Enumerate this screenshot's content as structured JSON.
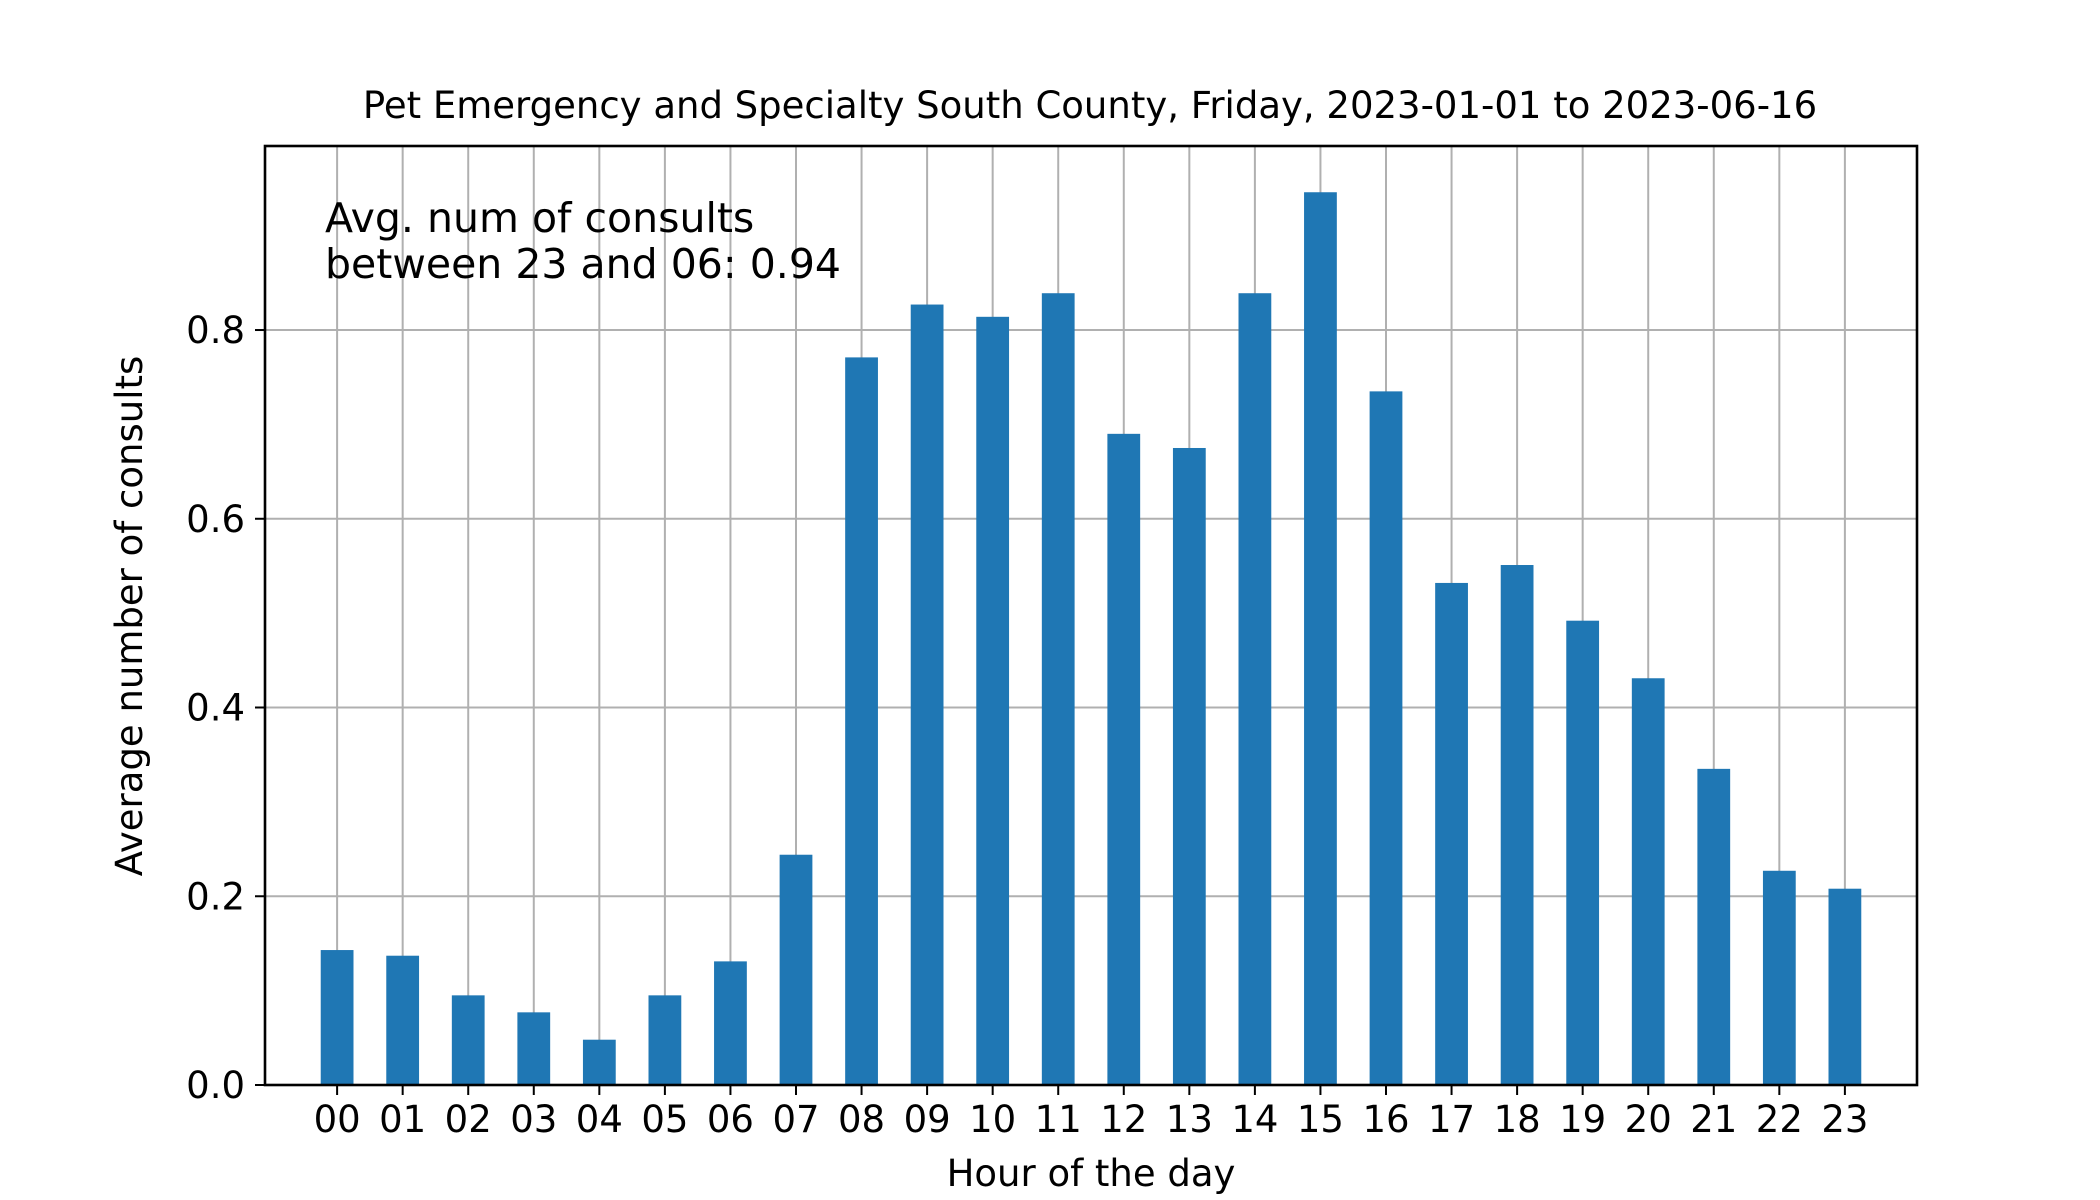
{
  "chart_data": {
    "type": "bar",
    "title": "Pet Emergency and Specialty South County, Friday, 2023-01-01 to 2023-06-16",
    "xlabel": "Hour of the day",
    "ylabel": "Average number of consults",
    "categories": [
      "00",
      "01",
      "02",
      "03",
      "04",
      "05",
      "06",
      "07",
      "08",
      "09",
      "10",
      "11",
      "12",
      "13",
      "14",
      "15",
      "16",
      "17",
      "18",
      "19",
      "20",
      "21",
      "22",
      "23"
    ],
    "values": [
      0.143,
      0.137,
      0.095,
      0.077,
      0.048,
      0.095,
      0.131,
      0.244,
      0.771,
      0.827,
      0.814,
      0.839,
      0.69,
      0.675,
      0.839,
      0.946,
      0.735,
      0.532,
      0.551,
      0.492,
      0.431,
      0.335,
      0.227,
      0.208
    ],
    "ylim": [
      0,
      0.995
    ],
    "yticks": [
      0.0,
      0.2,
      0.4,
      0.6,
      0.8
    ],
    "ytick_labels": [
      "0.0",
      "0.2",
      "0.4",
      "0.6",
      "0.8"
    ],
    "grid": true,
    "bar_color": "#1f77b4",
    "annotation_lines": [
      "Avg. num of consults",
      "between 23 and 06: 0.94"
    ]
  }
}
